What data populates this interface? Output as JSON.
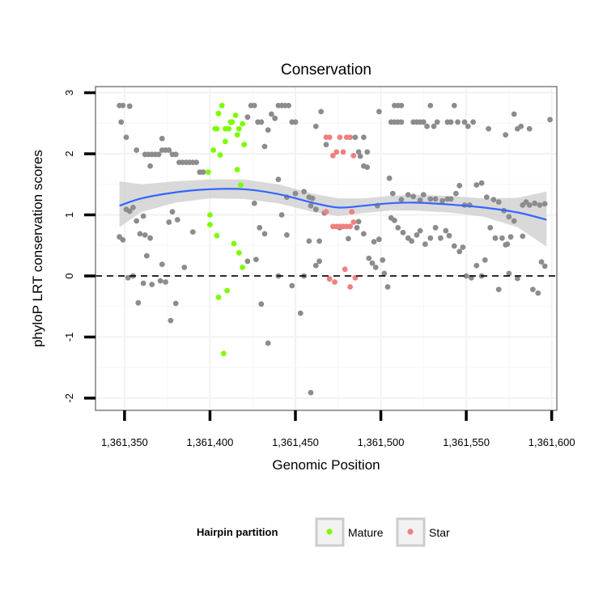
{
  "chart_data": {
    "type": "scatter",
    "title": "Conservation",
    "xlabel": "Genomic Position",
    "ylabel": "phyloP LRT conservation scores",
    "xlim": [
      1361333,
      1361603
    ],
    "ylim": [
      -2.2,
      3.1
    ],
    "x_ticks": [
      1361350,
      1361400,
      1361450,
      1361500,
      1361550,
      1361600
    ],
    "x_tick_labels": [
      "1,361,350",
      "1,361,400",
      "1,361,450",
      "1,361,500",
      "1,361,550",
      "1,361,600"
    ],
    "y_ticks": [
      -2,
      -1,
      0,
      1,
      2,
      3
    ],
    "y_tick_labels": [
      "-2",
      "-1",
      "0",
      "1",
      "2",
      "3"
    ],
    "grid": true,
    "reference_line": {
      "y": 0,
      "style": "dashed"
    },
    "legend": {
      "title": "Hairpin partition",
      "position": "bottom",
      "entries": [
        {
          "label": "Mature",
          "color": "#7cfc00"
        },
        {
          "label": "Star",
          "color": "#f08080"
        }
      ]
    },
    "colors": {
      "other": "#8c8c8c",
      "Mature": "#7cfc00",
      "Star": "#f08080",
      "smooth": "#3366ff",
      "band": "#cccccc"
    },
    "smooth": {
      "x": [
        1361347,
        1361360,
        1361380,
        1361400,
        1361420,
        1361440,
        1361460,
        1361475,
        1361490,
        1361505,
        1361520,
        1361540,
        1361560,
        1361580,
        1361597
      ],
      "y": [
        1.15,
        1.27,
        1.37,
        1.42,
        1.42,
        1.34,
        1.2,
        1.12,
        1.15,
        1.19,
        1.2,
        1.17,
        1.12,
        1.04,
        0.92
      ],
      "lower": [
        0.8,
        1.05,
        1.2,
        1.27,
        1.26,
        1.19,
        1.05,
        0.98,
        1.03,
        1.07,
        1.07,
        1.04,
        0.97,
        0.8,
        0.48
      ],
      "upper": [
        1.55,
        1.5,
        1.55,
        1.58,
        1.58,
        1.5,
        1.35,
        1.27,
        1.27,
        1.31,
        1.33,
        1.31,
        1.27,
        1.28,
        1.38
      ]
    },
    "series": [
      {
        "group": "other",
        "points": [
          [
            1361347,
            2.79
          ],
          [
            1361349,
            2.79
          ],
          [
            1361353,
            2.78
          ],
          [
            1361348,
            2.52
          ],
          [
            1361351,
            2.27
          ],
          [
            1361357,
            2.06
          ],
          [
            1361362,
            1.99
          ],
          [
            1361364,
            1.99
          ],
          [
            1361366,
            1.99
          ],
          [
            1361368,
            1.99
          ],
          [
            1361370,
            1.99
          ],
          [
            1361372,
            2.06
          ],
          [
            1361374,
            2.06
          ],
          [
            1361376,
            2.06
          ],
          [
            1361378,
            1.99
          ],
          [
            1361380,
            1.99
          ],
          [
            1361382,
            1.86
          ],
          [
            1361384,
            1.86
          ],
          [
            1361386,
            1.86
          ],
          [
            1361388,
            1.86
          ],
          [
            1361390,
            1.86
          ],
          [
            1361392,
            1.86
          ],
          [
            1361394,
            1.7
          ],
          [
            1361396,
            1.7
          ],
          [
            1361365,
            1.8
          ],
          [
            1361372,
            2.25
          ],
          [
            1361378,
            1.05
          ],
          [
            1361381,
            0.92
          ],
          [
            1361390,
            0.72
          ],
          [
            1361385,
            0.14
          ],
          [
            1361347,
            0.64
          ],
          [
            1361349,
            0.59
          ],
          [
            1361351,
            1.09
          ],
          [
            1361353,
            1.06
          ],
          [
            1361355,
            1.12
          ],
          [
            1361357,
            0.9
          ],
          [
            1361359,
            0.69
          ],
          [
            1361361,
            0.98
          ],
          [
            1361362,
            0.67
          ],
          [
            1361363,
            0.33
          ],
          [
            1361365,
            0.62
          ],
          [
            1361352,
            -0.03
          ],
          [
            1361355,
            0.0
          ],
          [
            1361358,
            -0.44
          ],
          [
            1361361,
            -0.12
          ],
          [
            1361366,
            -0.14
          ],
          [
            1361371,
            -0.08
          ],
          [
            1361374,
            -0.1
          ],
          [
            1361377,
            -0.73
          ],
          [
            1361380,
            -0.45
          ],
          [
            1361372,
            0.19
          ],
          [
            1361376,
            0.88
          ],
          [
            1361422,
            2.6
          ],
          [
            1361424,
            2.79
          ],
          [
            1361426,
            2.79
          ],
          [
            1361428,
            2.52
          ],
          [
            1361430,
            2.52
          ],
          [
            1361434,
            2.39
          ],
          [
            1361436,
            2.65
          ],
          [
            1361438,
            2.58
          ],
          [
            1361440,
            2.79
          ],
          [
            1361442,
            2.79
          ],
          [
            1361444,
            2.79
          ],
          [
            1361446,
            2.79
          ],
          [
            1361448,
            2.52
          ],
          [
            1361450,
            2.52
          ],
          [
            1361432,
            2.12
          ],
          [
            1361440,
            1.58
          ],
          [
            1361445,
            1.29
          ],
          [
            1361450,
            1.35
          ],
          [
            1361426,
            1.19
          ],
          [
            1361429,
            0.79
          ],
          [
            1361432,
            0.69
          ],
          [
            1361422,
            0.24
          ],
          [
            1361427,
            0.27
          ],
          [
            1361430,
            -0.46
          ],
          [
            1361434,
            -1.1
          ],
          [
            1361440,
            0.0
          ],
          [
            1361445,
            0.67
          ],
          [
            1361448,
            -0.16
          ],
          [
            1361453,
            -0.61
          ],
          [
            1361455,
            0.0
          ],
          [
            1361458,
            0.57
          ],
          [
            1361459,
            -1.91
          ],
          [
            1361462,
            0.17
          ],
          [
            1361464,
            0.24
          ],
          [
            1361464,
            0.57
          ],
          [
            1361465,
            2.69
          ],
          [
            1361462,
            2.45
          ],
          [
            1361460,
            1.27
          ],
          [
            1361459,
            1.15
          ],
          [
            1361462,
            1.09
          ],
          [
            1361455,
            1.38
          ],
          [
            1361458,
            1.29
          ],
          [
            1361442,
            1.0
          ],
          [
            1361485,
            2.27
          ],
          [
            1361487,
            2.03
          ],
          [
            1361490,
            2.27
          ],
          [
            1361492,
            2.03
          ],
          [
            1361488,
            1.96
          ],
          [
            1361490,
            1.8
          ],
          [
            1361492,
            1.78
          ],
          [
            1361487,
            0.89
          ],
          [
            1361486,
            0.79
          ],
          [
            1361490,
            0.69
          ],
          [
            1361493,
            0.29
          ],
          [
            1361495,
            0.21
          ],
          [
            1361497,
            0.14
          ],
          [
            1361496,
            0.56
          ],
          [
            1361498,
            1.15
          ],
          [
            1361499,
            0.6
          ],
          [
            1361501,
            0.26
          ],
          [
            1361502,
            0.04
          ],
          [
            1361504,
            -0.18
          ],
          [
            1361499,
            2.69
          ],
          [
            1361506,
            2.52
          ],
          [
            1361508,
            2.79
          ],
          [
            1361510,
            2.79
          ],
          [
            1361512,
            2.79
          ],
          [
            1361508,
            2.52
          ],
          [
            1361510,
            2.52
          ],
          [
            1361512,
            2.52
          ],
          [
            1361519,
            2.52
          ],
          [
            1361521,
            2.52
          ],
          [
            1361523,
            2.52
          ],
          [
            1361525,
            2.52
          ],
          [
            1361527,
            2.45
          ],
          [
            1361529,
            2.79
          ],
          [
            1361531,
            2.45
          ],
          [
            1361533,
            2.52
          ],
          [
            1361539,
            2.52
          ],
          [
            1361541,
            2.52
          ],
          [
            1361543,
            2.79
          ],
          [
            1361545,
            2.52
          ],
          [
            1361549,
            2.52
          ],
          [
            1361551,
            2.45
          ],
          [
            1361554,
            2.52
          ],
          [
            1361505,
            1.6
          ],
          [
            1361507,
            1.35
          ],
          [
            1361512,
            1.25
          ],
          [
            1361516,
            1.33
          ],
          [
            1361519,
            1.3
          ],
          [
            1361523,
            1.24
          ],
          [
            1361525,
            1.33
          ],
          [
            1361529,
            1.26
          ],
          [
            1361532,
            1.26
          ],
          [
            1361536,
            1.23
          ],
          [
            1361539,
            1.26
          ],
          [
            1361541,
            1.26
          ],
          [
            1361544,
            1.35
          ],
          [
            1361546,
            1.48
          ],
          [
            1361549,
            1.16
          ],
          [
            1361552,
            1.16
          ],
          [
            1361556,
            1.49
          ],
          [
            1361559,
            1.52
          ],
          [
            1361562,
            1.29
          ],
          [
            1361566,
            1.25
          ],
          [
            1361569,
            1.21
          ],
          [
            1361572,
            1.07
          ],
          [
            1361575,
            0.97
          ],
          [
            1361506,
            0.95
          ],
          [
            1361508,
            0.91
          ],
          [
            1361510,
            0.79
          ],
          [
            1361513,
            0.71
          ],
          [
            1361516,
            0.62
          ],
          [
            1361518,
            0.57
          ],
          [
            1361521,
            0.67
          ],
          [
            1361523,
            0.74
          ],
          [
            1361526,
            0.52
          ],
          [
            1361529,
            0.62
          ],
          [
            1361532,
            0.79
          ],
          [
            1361535,
            0.62
          ],
          [
            1361538,
            0.74
          ],
          [
            1361540,
            0.66
          ],
          [
            1361543,
            0.49
          ],
          [
            1361546,
            0.4
          ],
          [
            1361548,
            0.47
          ],
          [
            1361550,
            0.0
          ],
          [
            1361553,
            -0.03
          ],
          [
            1361556,
            0.17
          ],
          [
            1361559,
            0.0
          ],
          [
            1361561,
            0.26
          ],
          [
            1361564,
            0.79
          ],
          [
            1361567,
            0.62
          ],
          [
            1361571,
            0.62
          ],
          [
            1361574,
            0.52
          ],
          [
            1361576,
            0.64
          ],
          [
            1361569,
            -0.22
          ],
          [
            1361580,
            -0.04
          ],
          [
            1361583,
            1.16
          ],
          [
            1361585,
            1.21
          ],
          [
            1361587,
            1.16
          ],
          [
            1361590,
            1.19
          ],
          [
            1361593,
            1.16
          ],
          [
            1361596,
            1.18
          ],
          [
            1361589,
            -0.22
          ],
          [
            1361592,
            -0.28
          ],
          [
            1361594,
            0.23
          ],
          [
            1361596,
            0.16
          ],
          [
            1361599,
            2.56
          ],
          [
            1361563,
            2.41
          ],
          [
            1361573,
            2.31
          ],
          [
            1361578,
            2.65
          ],
          [
            1361580,
            2.41
          ],
          [
            1361582,
            2.45
          ],
          [
            1361587,
            2.41
          ],
          [
            1361575,
            0.04
          ],
          [
            1361573,
            0.51
          ],
          [
            1361578,
            0.9
          ],
          [
            1361583,
            0.65
          ],
          [
            1361481,
            0.61
          ],
          [
            1361467,
            1.03
          ],
          [
            1361468,
            2.15
          ],
          [
            1361476,
            0.79
          ]
        ]
      },
      {
        "group": "Mature",
        "points": [
          [
            1361403,
            2.41
          ],
          [
            1361405,
            2.66
          ],
          [
            1361407,
            2.79
          ],
          [
            1361409,
            2.41
          ],
          [
            1361411,
            2.41
          ],
          [
            1361413,
            2.52
          ],
          [
            1361415,
            2.63
          ],
          [
            1361417,
            2.41
          ],
          [
            1361419,
            2.49
          ],
          [
            1361404,
            2.41
          ],
          [
            1361409,
            2.2
          ],
          [
            1361412,
            2.52
          ],
          [
            1361416,
            2.31
          ],
          [
            1361420,
            2.15
          ],
          [
            1361402,
            2.06
          ],
          [
            1361406,
            1.98
          ],
          [
            1361399,
            1.7
          ],
          [
            1361416,
            1.74
          ],
          [
            1361418,
            1.49
          ],
          [
            1361400,
            1.0
          ],
          [
            1361400,
            0.84
          ],
          [
            1361404,
            0.66
          ],
          [
            1361414,
            0.53
          ],
          [
            1361417,
            0.38
          ],
          [
            1361419,
            0.14
          ],
          [
            1361405,
            -0.35
          ],
          [
            1361410,
            -0.24
          ],
          [
            1361408,
            -1.27
          ]
        ]
      },
      {
        "group": "Star",
        "points": [
          [
            1361468,
            2.27
          ],
          [
            1361470,
            2.27
          ],
          [
            1361472,
            1.97
          ],
          [
            1361474,
            2.03
          ],
          [
            1361476,
            2.27
          ],
          [
            1361478,
            2.03
          ],
          [
            1361480,
            2.27
          ],
          [
            1361482,
            2.27
          ],
          [
            1361484,
            1.97
          ],
          [
            1361468,
            1.05
          ],
          [
            1361472,
            0.81
          ],
          [
            1361474,
            0.81
          ],
          [
            1361476,
            0.81
          ],
          [
            1361478,
            0.81
          ],
          [
            1361480,
            0.81
          ],
          [
            1361482,
            0.81
          ],
          [
            1361484,
            0.88
          ],
          [
            1361483,
            1.05
          ],
          [
            1361470,
            -0.05
          ],
          [
            1361473,
            -0.1
          ],
          [
            1361479,
            0.11
          ],
          [
            1361482,
            -0.18
          ],
          [
            1361485,
            -0.03
          ]
        ]
      }
    ]
  }
}
